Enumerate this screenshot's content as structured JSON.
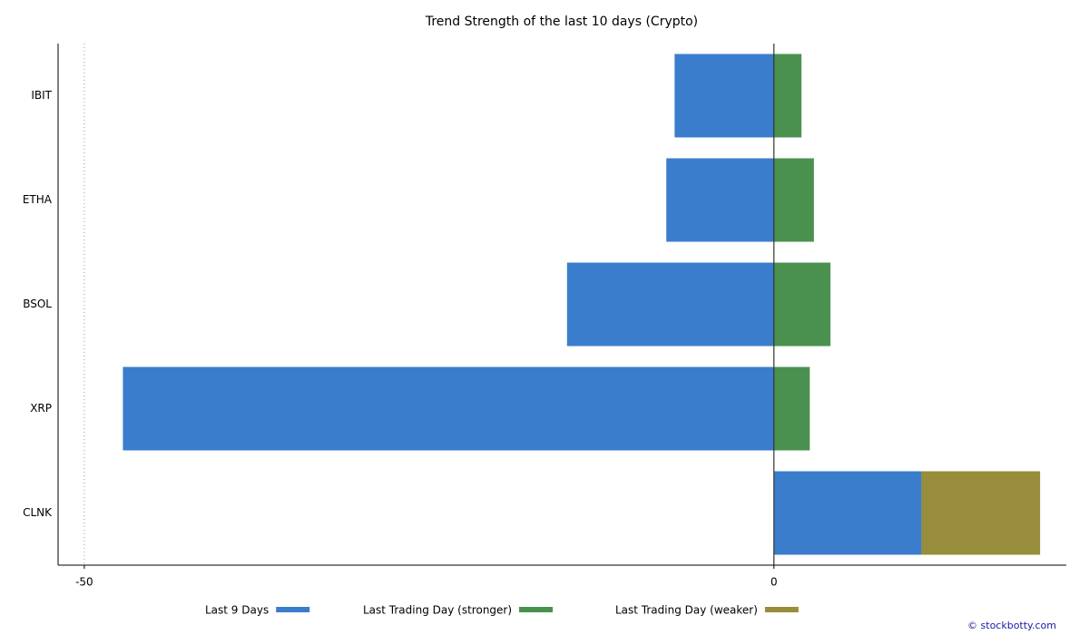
{
  "chart_data": {
    "type": "bar",
    "orientation": "horizontal",
    "stacking": "relative",
    "title": "Trend Strength of the last 10 days (Crypto)",
    "categories": [
      "IBIT",
      "ETHA",
      "BSOL",
      "XRP",
      "CLNK"
    ],
    "series": [
      {
        "name": "Last 9 Days",
        "color": "#3a7dcc",
        "values": [
          -7.2,
          -7.8,
          -15.0,
          -47.2,
          10.7
        ]
      },
      {
        "name": "Last Trading Day (stronger)",
        "color": "#4a9150",
        "values": [
          2.0,
          2.9,
          4.1,
          2.6,
          null
        ]
      },
      {
        "name": "Last Trading Day (weaker)",
        "color": "#988d3a",
        "values": [
          null,
          null,
          null,
          null,
          8.6
        ]
      }
    ],
    "xlim": [
      -51.9,
      21.2
    ],
    "xticks": [
      -50,
      0
    ],
    "grid": true,
    "legend": "bottom",
    "annotation": "© stockbotty.com"
  }
}
